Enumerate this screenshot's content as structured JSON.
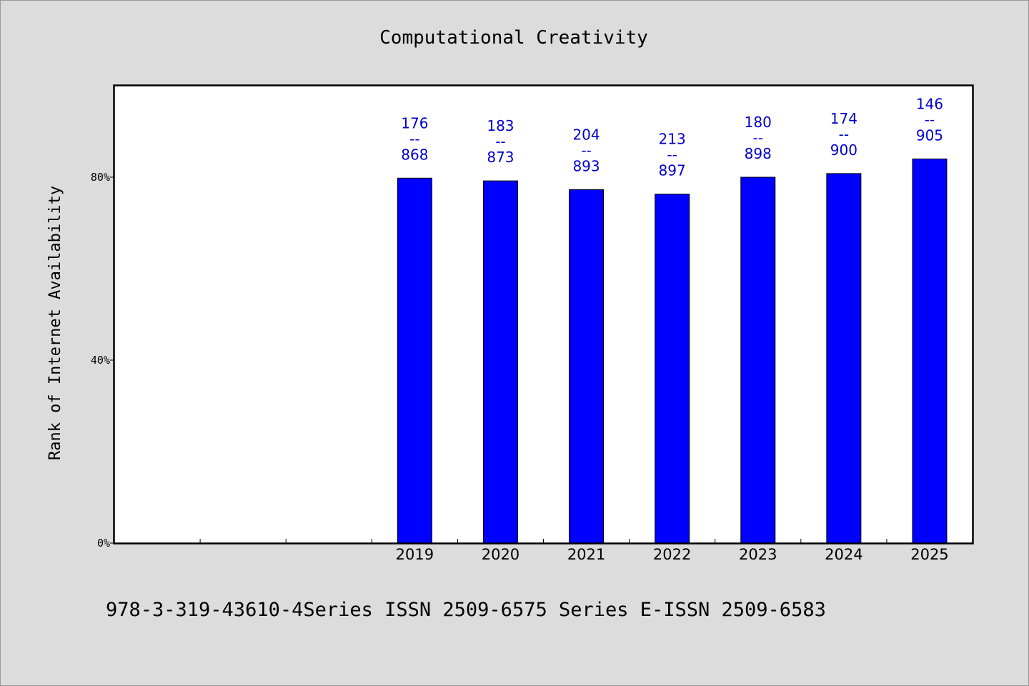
{
  "chart_data": {
    "type": "bar",
    "title": "Computational Creativity",
    "ylabel": "Rank of Internet Availability",
    "xlabel": "",
    "categories": [
      "",
      "",
      "",
      "2019",
      "2020",
      "2021",
      "2022",
      "2023",
      "2024",
      "2025"
    ],
    "values": [
      null,
      null,
      null,
      79.8,
      79.2,
      77.3,
      76.3,
      80.0,
      80.8,
      84.0
    ],
    "data_labels": [
      null,
      null,
      null,
      [
        "176",
        "--",
        "868"
      ],
      [
        "183",
        "--",
        "873"
      ],
      [
        "204",
        "--",
        "893"
      ],
      [
        "213",
        "--",
        "897"
      ],
      [
        "180",
        "--",
        "898"
      ],
      [
        "174",
        "--",
        "900"
      ],
      [
        "146",
        "--",
        "905"
      ]
    ],
    "yticks": [
      0,
      40,
      80
    ],
    "ytick_labels": [
      "0%",
      "40%",
      "80%"
    ],
    "ylim": [
      0,
      100
    ],
    "grid": false,
    "bar_color": "#0000ff",
    "label_color": "#0000cc"
  },
  "footer": "978-3-319-43610-4Series ISSN 2509-6575 Series E-ISSN 2509-6583",
  "colors": {
    "background": "#dcdcdc",
    "plot_background": "#ffffff"
  }
}
